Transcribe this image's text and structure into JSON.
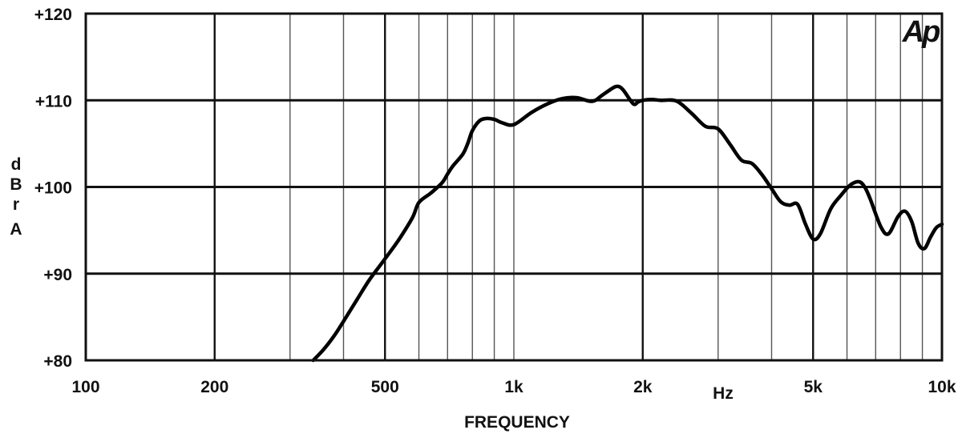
{
  "chart_data": {
    "type": "line",
    "title": "",
    "xlabel": "FREQUENCY",
    "x_unit": "Hz",
    "ylabel": "dBrA",
    "x_scale": "log",
    "xlim": [
      100,
      10000
    ],
    "ylim": [
      80,
      120
    ],
    "grid": true,
    "logo": "Ap",
    "y_ticks": [
      {
        "value": 120,
        "label": "+120"
      },
      {
        "value": 110,
        "label": "+110"
      },
      {
        "value": 100,
        "label": "+100"
      },
      {
        "value": 90,
        "label": "+90"
      },
      {
        "value": 80,
        "label": "+80"
      }
    ],
    "x_ticks": [
      {
        "value": 100,
        "label": "100"
      },
      {
        "value": 200,
        "label": "200"
      },
      {
        "value": 500,
        "label": "500"
      },
      {
        "value": 1000,
        "label": "1k"
      },
      {
        "value": 2000,
        "label": "2k"
      },
      {
        "value": 5000,
        "label": "5k"
      },
      {
        "value": 10000,
        "label": "10k"
      }
    ],
    "series": [
      {
        "x": [
          340,
          360,
          380,
          400,
          430,
          460,
          500,
          540,
          580,
          600,
          640,
          680,
          700,
          720,
          760,
          780,
          800,
          830,
          860,
          900,
          940,
          1000,
          1100,
          1200,
          1300,
          1400,
          1500,
          1550,
          1600,
          1700,
          1750,
          1800,
          1900,
          1950,
          2000,
          2100,
          2200,
          2400,
          2600,
          2800,
          3000,
          3200,
          3400,
          3600,
          3800,
          4000,
          4200,
          4400,
          4600,
          4800,
          5000,
          5200,
          5500,
          5800,
          6100,
          6400,
          6600,
          6800,
          7200,
          7500,
          7900,
          8200,
          8500,
          8800,
          9100,
          9400,
          9700,
          10000
        ],
        "y": [
          80,
          81.3,
          82.8,
          84.5,
          87,
          89.3,
          91.7,
          94,
          96.5,
          98.2,
          99.3,
          100.5,
          101.5,
          102.4,
          103.8,
          105,
          106.5,
          107.6,
          107.9,
          107.8,
          107.4,
          107.2,
          108.6,
          109.6,
          110.2,
          110.3,
          109.9,
          110,
          110.5,
          111.4,
          111.6,
          111.2,
          109.6,
          109.8,
          110,
          110.1,
          110,
          109.9,
          108.5,
          107,
          106.7,
          104.9,
          103.1,
          102.7,
          101.4,
          99.8,
          98.3,
          97.9,
          98,
          95.7,
          94,
          94.6,
          97.5,
          99,
          100.2,
          100.6,
          100,
          98.6,
          95.4,
          94.6,
          96.6,
          97.2,
          96,
          93.5,
          92.9,
          94.2,
          95.3,
          95.7
        ]
      }
    ]
  }
}
